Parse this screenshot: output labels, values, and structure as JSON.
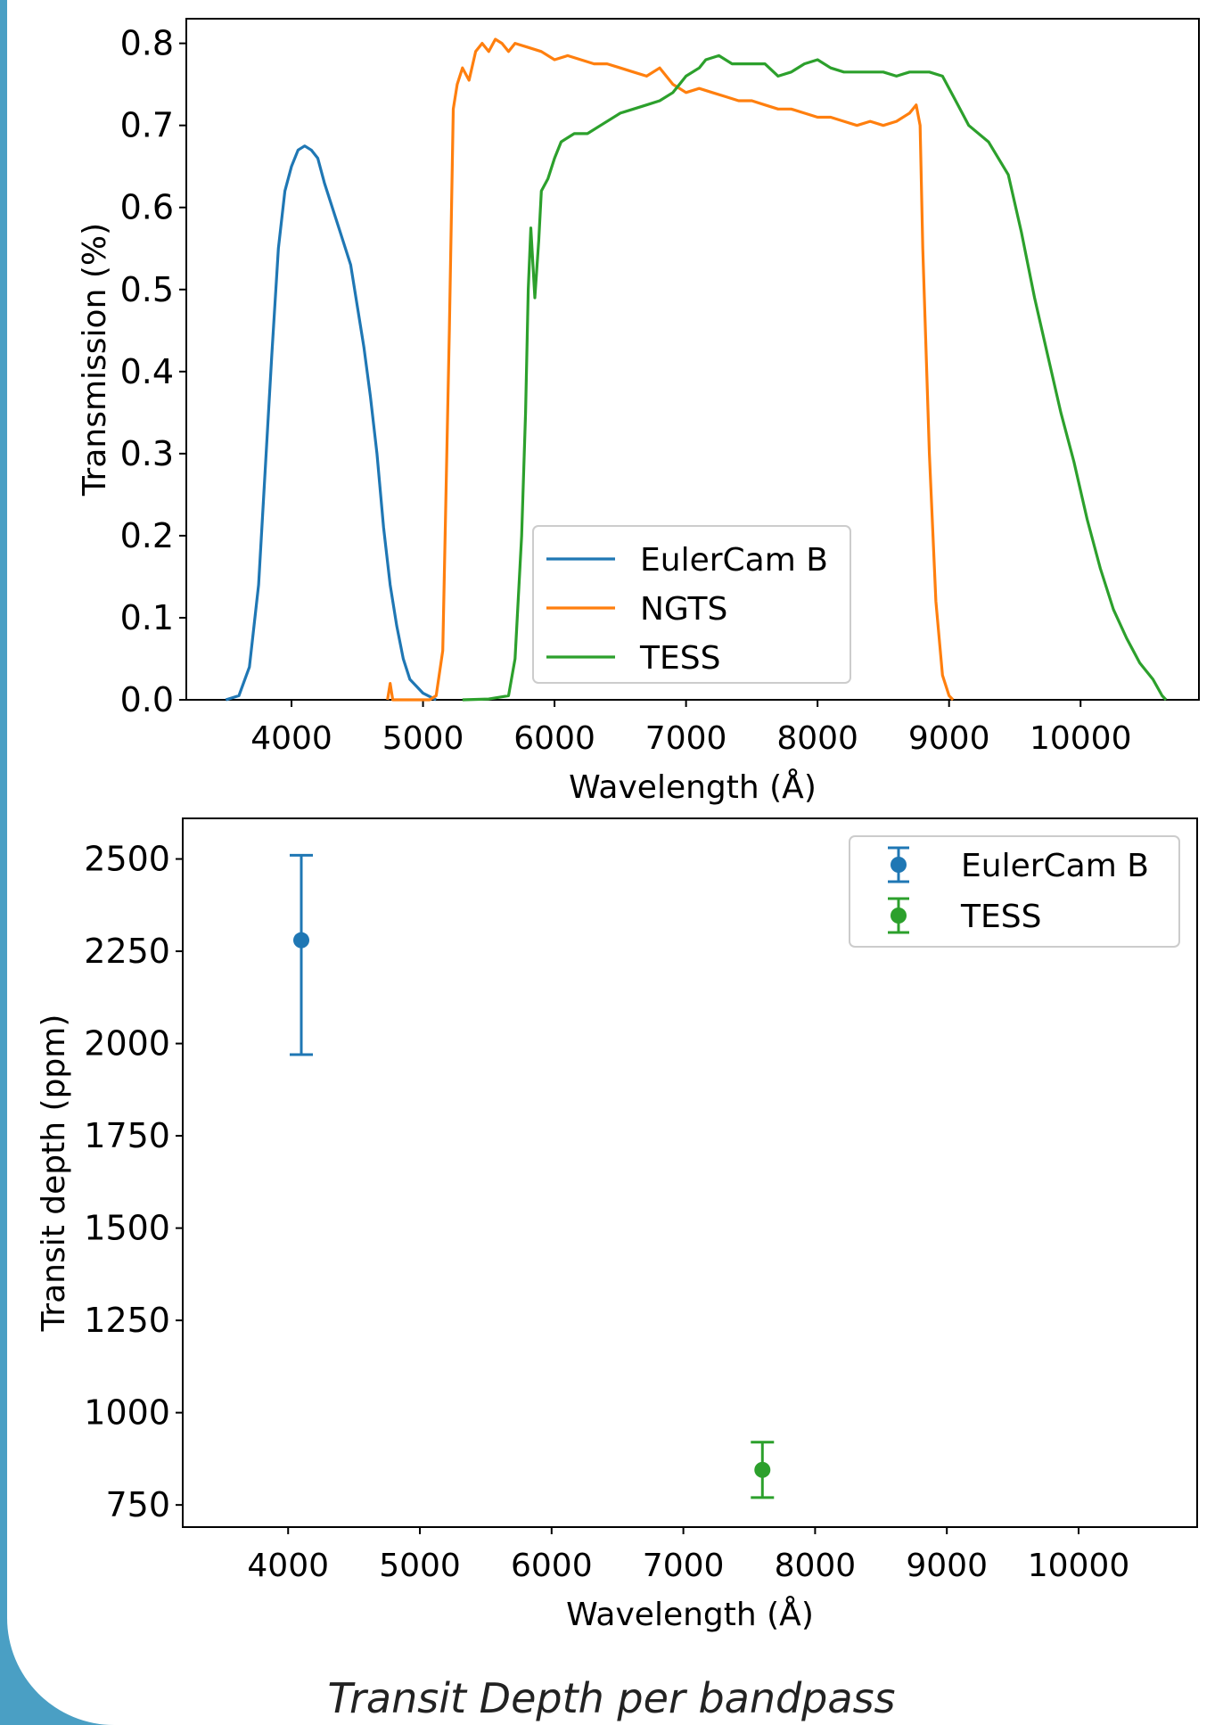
{
  "caption": "Transit Depth per bandpass",
  "colors": {
    "EulerCam B": "#1f77b4",
    "NGTS": "#ff7f0e",
    "TESS": "#2ca02c",
    "frame": "#4a9fc4"
  },
  "chart_data": [
    {
      "type": "line",
      "xlabel": "Wavelength (Å)",
      "ylabel": "Transmission (%)",
      "xlim": [
        3200,
        10900
      ],
      "ylim": [
        0,
        0.83
      ],
      "xticks": [
        4000,
        5000,
        6000,
        7000,
        8000,
        9000,
        10000
      ],
      "xtick_labels": [
        "4000",
        "5000",
        "6000",
        "7000",
        "8000",
        "9000",
        "10000"
      ],
      "yticks": [
        0.0,
        0.1,
        0.2,
        0.3,
        0.4,
        0.5,
        0.6,
        0.7,
        0.8
      ],
      "ytick_labels": [
        "0.0",
        "0.1",
        "0.2",
        "0.3",
        "0.4",
        "0.5",
        "0.6",
        "0.7",
        "0.8"
      ],
      "grid": false,
      "legend": "lower-center",
      "series": [
        {
          "name": "EulerCam B",
          "points": [
            [
              3500,
              0.0
            ],
            [
              3600,
              0.005
            ],
            [
              3680,
              0.04
            ],
            [
              3750,
              0.14
            ],
            [
              3800,
              0.28
            ],
            [
              3850,
              0.42
            ],
            [
              3900,
              0.55
            ],
            [
              3950,
              0.62
            ],
            [
              4000,
              0.65
            ],
            [
              4050,
              0.67
            ],
            [
              4100,
              0.675
            ],
            [
              4150,
              0.67
            ],
            [
              4200,
              0.66
            ],
            [
              4250,
              0.63
            ],
            [
              4350,
              0.58
            ],
            [
              4450,
              0.53
            ],
            [
              4500,
              0.48
            ],
            [
              4550,
              0.43
            ],
            [
              4600,
              0.37
            ],
            [
              4650,
              0.3
            ],
            [
              4700,
              0.21
            ],
            [
              4750,
              0.14
            ],
            [
              4800,
              0.09
            ],
            [
              4850,
              0.05
            ],
            [
              4900,
              0.025
            ],
            [
              5000,
              0.008
            ],
            [
              5100,
              0.0
            ]
          ]
        },
        {
          "name": "NGTS",
          "points": [
            [
              4730,
              0.0
            ],
            [
              4750,
              0.02
            ],
            [
              4770,
              0.0
            ],
            [
              5050,
              0.0
            ],
            [
              5100,
              0.005
            ],
            [
              5150,
              0.06
            ],
            [
              5200,
              0.45
            ],
            [
              5230,
              0.72
            ],
            [
              5260,
              0.75
            ],
            [
              5300,
              0.77
            ],
            [
              5350,
              0.755
            ],
            [
              5400,
              0.79
            ],
            [
              5450,
              0.8
            ],
            [
              5500,
              0.79
            ],
            [
              5550,
              0.805
            ],
            [
              5600,
              0.8
            ],
            [
              5650,
              0.79
            ],
            [
              5700,
              0.8
            ],
            [
              5800,
              0.795
            ],
            [
              5900,
              0.79
            ],
            [
              6000,
              0.78
            ],
            [
              6100,
              0.785
            ],
            [
              6200,
              0.78
            ],
            [
              6300,
              0.775
            ],
            [
              6400,
              0.775
            ],
            [
              6500,
              0.77
            ],
            [
              6600,
              0.765
            ],
            [
              6700,
              0.76
            ],
            [
              6800,
              0.77
            ],
            [
              6900,
              0.75
            ],
            [
              7000,
              0.74
            ],
            [
              7100,
              0.745
            ],
            [
              7200,
              0.74
            ],
            [
              7300,
              0.735
            ],
            [
              7400,
              0.73
            ],
            [
              7500,
              0.73
            ],
            [
              7600,
              0.725
            ],
            [
              7700,
              0.72
            ],
            [
              7800,
              0.72
            ],
            [
              7900,
              0.715
            ],
            [
              8000,
              0.71
            ],
            [
              8100,
              0.71
            ],
            [
              8200,
              0.705
            ],
            [
              8300,
              0.7
            ],
            [
              8400,
              0.705
            ],
            [
              8500,
              0.7
            ],
            [
              8600,
              0.705
            ],
            [
              8700,
              0.715
            ],
            [
              8750,
              0.725
            ],
            [
              8780,
              0.7
            ],
            [
              8800,
              0.55
            ],
            [
              8850,
              0.3
            ],
            [
              8900,
              0.12
            ],
            [
              8950,
              0.03
            ],
            [
              9000,
              0.005
            ],
            [
              9030,
              0.0
            ]
          ]
        },
        {
          "name": "TESS",
          "points": [
            [
              5300,
              0.0
            ],
            [
              5500,
              0.001
            ],
            [
              5650,
              0.005
            ],
            [
              5700,
              0.05
            ],
            [
              5750,
              0.2
            ],
            [
              5780,
              0.35
            ],
            [
              5800,
              0.5
            ],
            [
              5820,
              0.575
            ],
            [
              5850,
              0.49
            ],
            [
              5880,
              0.56
            ],
            [
              5900,
              0.62
            ],
            [
              5950,
              0.635
            ],
            [
              6000,
              0.66
            ],
            [
              6050,
              0.68
            ],
            [
              6100,
              0.685
            ],
            [
              6150,
              0.69
            ],
            [
              6250,
              0.69
            ],
            [
              6350,
              0.7
            ],
            [
              6500,
              0.715
            ],
            [
              6600,
              0.72
            ],
            [
              6700,
              0.725
            ],
            [
              6800,
              0.73
            ],
            [
              6900,
              0.74
            ],
            [
              7000,
              0.76
            ],
            [
              7100,
              0.77
            ],
            [
              7150,
              0.78
            ],
            [
              7250,
              0.785
            ],
            [
              7350,
              0.775
            ],
            [
              7500,
              0.775
            ],
            [
              7600,
              0.775
            ],
            [
              7700,
              0.76
            ],
            [
              7800,
              0.765
            ],
            [
              7900,
              0.775
            ],
            [
              8000,
              0.78
            ],
            [
              8100,
              0.77
            ],
            [
              8200,
              0.765
            ],
            [
              8300,
              0.765
            ],
            [
              8500,
              0.765
            ],
            [
              8600,
              0.76
            ],
            [
              8700,
              0.765
            ],
            [
              8850,
              0.765
            ],
            [
              8950,
              0.76
            ],
            [
              9050,
              0.73
            ],
            [
              9150,
              0.7
            ],
            [
              9300,
              0.68
            ],
            [
              9450,
              0.64
            ],
            [
              9550,
              0.57
            ],
            [
              9650,
              0.49
            ],
            [
              9750,
              0.42
            ],
            [
              9850,
              0.35
            ],
            [
              9950,
              0.29
            ],
            [
              10050,
              0.22
            ],
            [
              10150,
              0.16
            ],
            [
              10250,
              0.11
            ],
            [
              10350,
              0.075
            ],
            [
              10450,
              0.045
            ],
            [
              10550,
              0.025
            ],
            [
              10620,
              0.005
            ],
            [
              10650,
              0.0
            ]
          ]
        }
      ]
    },
    {
      "type": "scatter",
      "xlabel": "Wavelength (Å)",
      "ylabel": "Transit depth (ppm)",
      "xlim": [
        3200,
        10900
      ],
      "ylim": [
        690,
        2610
      ],
      "xticks": [
        4000,
        5000,
        6000,
        7000,
        8000,
        9000,
        10000
      ],
      "xtick_labels": [
        "4000",
        "5000",
        "6000",
        "7000",
        "8000",
        "9000",
        "10000"
      ],
      "yticks": [
        750,
        1000,
        1250,
        1500,
        1750,
        2000,
        2250,
        2500
      ],
      "ytick_labels": [
        "750",
        "1000",
        "1250",
        "1500",
        "1750",
        "2000",
        "2250",
        "2500"
      ],
      "grid": false,
      "legend": "top-right",
      "series": [
        {
          "name": "EulerCam B",
          "x": 4100,
          "y": 2280,
          "err_low": 1970,
          "err_high": 2510
        },
        {
          "name": "TESS",
          "x": 7600,
          "y": 845,
          "err_low": 770,
          "err_high": 920
        }
      ]
    }
  ]
}
